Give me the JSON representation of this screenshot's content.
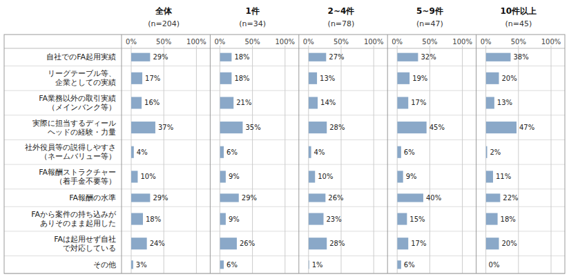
{
  "chart_data": [
    {
      "type": "bar",
      "orientation": "horizontal",
      "title": "全体",
      "subtitle": "(n=204)",
      "categories": [
        "自社でのFA起用実績",
        "リーグテーブル等、\n企業としての実績",
        "FA業務以外の取引実績\n（メインバンク等）",
        "実際に担当するディール\nヘッドの経験・力量",
        "社外役員等の説得しやすさ\n（ネームバリュー等）",
        "FA報酬ストラクチャー\n（着手金不要等）",
        "FA報酬の水準",
        "FAから案件の持ち込みが\nありそのまま起用した",
        "FAは起用せず自社\nで対応している",
        "その他"
      ],
      "values": [
        29,
        17,
        16,
        37,
        4,
        10,
        29,
        18,
        24,
        3
      ],
      "value_labels": [
        "29%",
        "17%",
        "16%",
        "37%",
        "4%",
        "10%",
        "29%",
        "18%",
        "24%",
        "3%"
      ],
      "color": "#8aa8c8",
      "xlim": [
        0,
        100
      ],
      "xticks": [
        {
          "value": 0,
          "label": "0%"
        },
        {
          "value": 50,
          "label": "50%"
        },
        {
          "value": 100,
          "label": "100%"
        }
      ],
      "grid": true,
      "data_labels": true
    },
    {
      "type": "bar",
      "orientation": "horizontal",
      "title": "1件",
      "subtitle": "(n=34)",
      "values": [
        18,
        18,
        21,
        35,
        6,
        9,
        29,
        9,
        26,
        6
      ],
      "value_labels": [
        "18%",
        "18%",
        "21%",
        "35%",
        "6%",
        "9%",
        "29%",
        "9%",
        "26%",
        "6%"
      ],
      "color": "#8aa8c8",
      "xlim": [
        0,
        100
      ],
      "xticks": [
        {
          "value": 0,
          "label": "0%"
        },
        {
          "value": 50,
          "label": "50%"
        },
        {
          "value": 100,
          "label": "100%"
        }
      ],
      "grid": true,
      "data_labels": true,
      "tick_labels": "x"
    },
    {
      "type": "bar",
      "orientation": "horizontal",
      "title": "2~4件",
      "subtitle": "(n=78)",
      "values": [
        27,
        13,
        14,
        28,
        4,
        10,
        26,
        23,
        28,
        1
      ],
      "value_labels": [
        "27%",
        "13%",
        "14%",
        "28%",
        "4%",
        "10%",
        "26%",
        "23%",
        "28%",
        "1%"
      ],
      "color": "#8aa8c8",
      "xlim": [
        0,
        100
      ],
      "xticks": [
        {
          "value": 0,
          "label": "0%"
        },
        {
          "value": 50,
          "label": "50%"
        },
        {
          "value": 100,
          "label": "100%"
        }
      ],
      "grid": true,
      "data_labels": true,
      "tick_labels": "x"
    },
    {
      "type": "bar",
      "orientation": "horizontal",
      "title": "5~9件",
      "subtitle": "(n=47)",
      "values": [
        32,
        19,
        17,
        45,
        6,
        9,
        40,
        15,
        17,
        6
      ],
      "value_labels": [
        "32%",
        "19%",
        "17%",
        "45%",
        "6%",
        "9%",
        "40%",
        "15%",
        "17%",
        "6%"
      ],
      "color": "#8aa8c8",
      "xlim": [
        0,
        100
      ],
      "xticks": [
        {
          "value": 0,
          "label": "0%"
        },
        {
          "value": 50,
          "label": "50%"
        },
        {
          "value": 100,
          "label": "100%"
        }
      ],
      "grid": true,
      "data_labels": true,
      "tick_labels": "x"
    },
    {
      "type": "bar",
      "orientation": "horizontal",
      "title": "10件以上",
      "subtitle": "(n=45)",
      "values": [
        38,
        20,
        13,
        47,
        2,
        11,
        22,
        18,
        20,
        0
      ],
      "value_labels": [
        "38%",
        "20%",
        "13%",
        "47%",
        "2%",
        "11%",
        "22%",
        "18%",
        "20%",
        "0%"
      ],
      "color": "#8aa8c8",
      "xlim": [
        0,
        100
      ],
      "xticks": [
        {
          "value": 0,
          "label": "0%"
        },
        {
          "value": 50,
          "label": "50%"
        },
        {
          "value": 100,
          "label": "100%"
        }
      ],
      "grid": true,
      "data_labels": true,
      "tick_labels": "x"
    }
  ]
}
